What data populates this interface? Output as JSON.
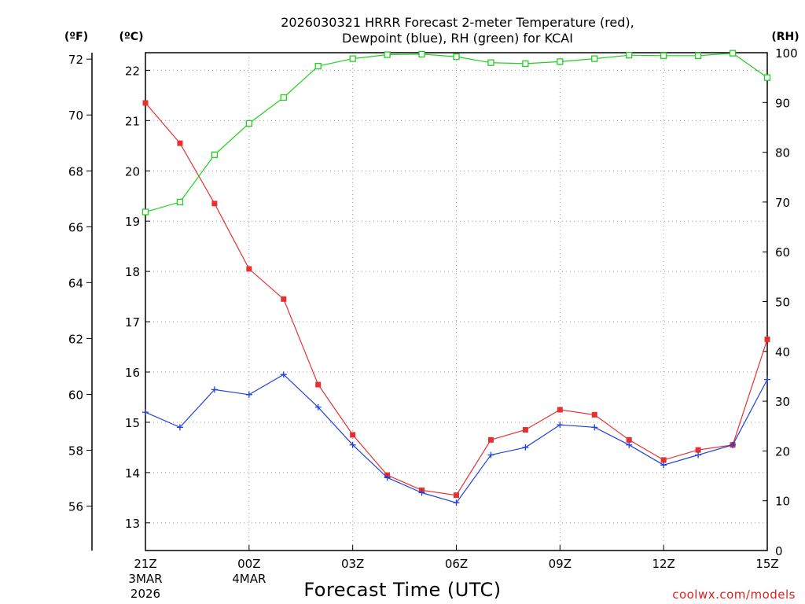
{
  "chart_data": {
    "type": "line",
    "title_line1": "2026030321 HRRR Forecast 2-meter Temperature (red),",
    "title_line2": "Dewpoint (blue), RH (green) for KCAI",
    "xlabel": "Forecast Time (UTC)",
    "credit": "coolwx.com/models",
    "unit_f": "(ºF)",
    "unit_c": "(ºC)",
    "unit_rh": "(RH)",
    "x_hours": [
      0,
      1,
      2,
      3,
      4,
      5,
      6,
      7,
      8,
      9,
      10,
      11,
      12,
      13,
      14,
      15,
      16,
      17,
      18
    ],
    "x_ticks": [
      {
        "hour": 0,
        "label": "21Z",
        "sub1": "3MAR",
        "sub2": "2026"
      },
      {
        "hour": 3,
        "label": "00Z",
        "sub1": "4MAR",
        "sub2": ""
      },
      {
        "hour": 6,
        "label": "03Z",
        "sub1": "",
        "sub2": ""
      },
      {
        "hour": 9,
        "label": "06Z",
        "sub1": "",
        "sub2": ""
      },
      {
        "hour": 12,
        "label": "09Z",
        "sub1": "",
        "sub2": ""
      },
      {
        "hour": 15,
        "label": "12Z",
        "sub1": "",
        "sub2": ""
      },
      {
        "hour": 18,
        "label": "15Z",
        "sub1": "",
        "sub2": ""
      }
    ],
    "celsius_ticks": [
      13,
      14,
      15,
      16,
      17,
      18,
      19,
      20,
      21,
      22
    ],
    "fahrenheit_ticks": [
      56,
      58,
      60,
      62,
      64,
      66,
      68,
      70,
      72
    ],
    "rh_ticks": [
      0,
      10,
      20,
      30,
      40,
      50,
      60,
      70,
      80,
      90,
      100
    ],
    "celsius_range": [
      12.45,
      22.35
    ],
    "rh_range": [
      0,
      100
    ],
    "series": [
      {
        "name": "Temperature",
        "color": "#e83030",
        "marker": "filled-square",
        "values": [
          21.35,
          20.55,
          19.35,
          18.05,
          17.45,
          15.75,
          14.75,
          13.95,
          13.65,
          13.55,
          14.65,
          14.85,
          15.25,
          15.15,
          14.65,
          14.25,
          14.45,
          14.55,
          16.65
        ]
      },
      {
        "name": "Dewpoint",
        "color": "#2040e0",
        "marker": "plus",
        "values": [
          15.2,
          14.9,
          15.65,
          15.55,
          15.95,
          15.3,
          14.55,
          13.9,
          13.6,
          13.4,
          14.35,
          14.5,
          14.95,
          14.9,
          14.55,
          14.15,
          14.35,
          14.55,
          15.85
        ]
      },
      {
        "name": "RH",
        "color": "#20d020",
        "marker": "open-square",
        "values": [
          68,
          70,
          79.5,
          85.8,
          91,
          97.3,
          98.8,
          99.6,
          99.7,
          99.2,
          98,
          97.8,
          98.2,
          98.8,
          99.5,
          99.4,
          99.4,
          99.9,
          95
        ]
      }
    ]
  }
}
